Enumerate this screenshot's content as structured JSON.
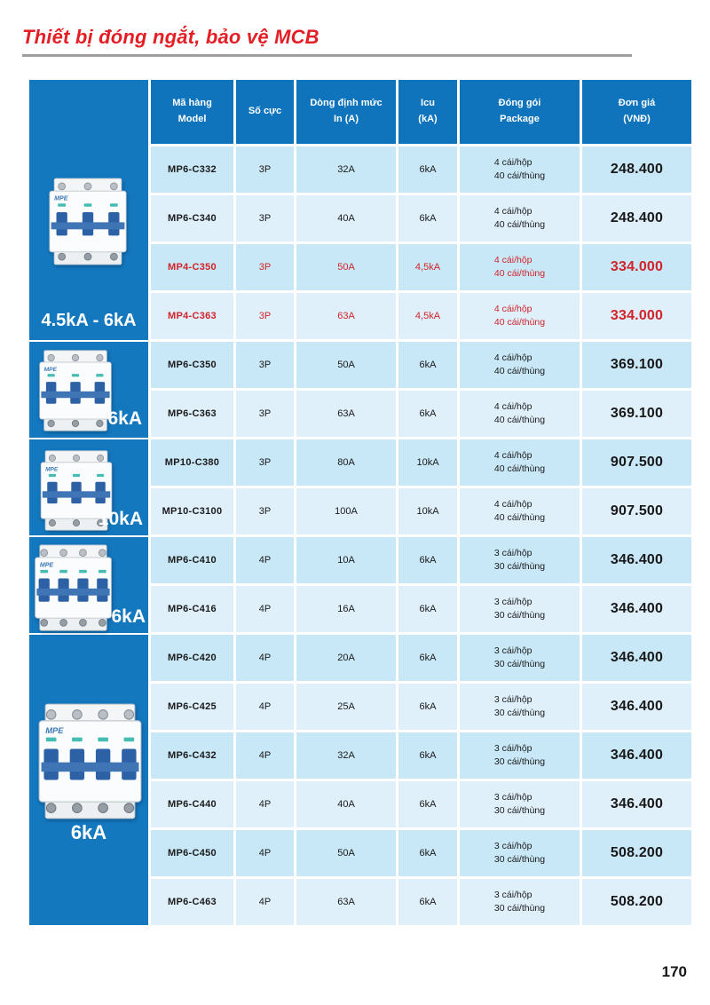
{
  "page": {
    "title": "Thiết bị đóng ngắt, bảo vệ MCB",
    "page_number": "170",
    "accent_red": "#D2232A",
    "header_blue": "#0F74BC",
    "sidebar_blue": "#1478BF",
    "row_color_dark": "#C9E8F7",
    "row_color_light": "#DFF0FB"
  },
  "sidebar": {
    "sections": [
      {
        "label": "4.5kA - 6kA",
        "image": "mcb-breaker-3-pole",
        "poles": 3
      },
      {
        "label": "6kA",
        "image": "mcb-breaker-3-pole",
        "poles": 3
      },
      {
        "label": "10kA",
        "image": "mcb-breaker-3-pole",
        "poles": 3
      },
      {
        "label": "6kA",
        "image": "mcb-breaker-4-pole",
        "poles": 4
      },
      {
        "label": "6kA",
        "image": "mcb-breaker-4-pole",
        "poles": 4
      }
    ]
  },
  "table": {
    "headers": [
      {
        "line1": "Mã hàng",
        "line2": "Model"
      },
      {
        "line1": "Số cực",
        "line2": ""
      },
      {
        "line1": "Dòng định mức",
        "line2": "In (A)"
      },
      {
        "line1": "Icu",
        "line2": "(kA)"
      },
      {
        "line1": "Đóng gói",
        "line2": "Package"
      },
      {
        "line1": "Đơn giá",
        "line2": "(VNĐ)"
      }
    ],
    "rows": [
      {
        "model": "MP6-C332",
        "poles": "3P",
        "in": "32A",
        "icu": "6kA",
        "pack1": "4 cái/hộp",
        "pack2": "40 cái/thùng",
        "price": "248.400",
        "highlight": false
      },
      {
        "model": "MP6-C340",
        "poles": "3P",
        "in": "40A",
        "icu": "6kA",
        "pack1": "4 cái/hộp",
        "pack2": "40 cái/thùng",
        "price": "248.400",
        "highlight": false
      },
      {
        "model": "MP4-C350",
        "poles": "3P",
        "in": "50A",
        "icu": "4,5kA",
        "pack1": "4 cái/hộp",
        "pack2": "40 cái/thùng",
        "price": "334.000",
        "highlight": true
      },
      {
        "model": "MP4-C363",
        "poles": "3P",
        "in": "63A",
        "icu": "4,5kA",
        "pack1": "4 cái/hộp",
        "pack2": "40 cái/thùng",
        "price": "334.000",
        "highlight": true
      },
      {
        "model": "MP6-C350",
        "poles": "3P",
        "in": "50A",
        "icu": "6kA",
        "pack1": "4 cái/hộp",
        "pack2": "40 cái/thùng",
        "price": "369.100",
        "highlight": false
      },
      {
        "model": "MP6-C363",
        "poles": "3P",
        "in": "63A",
        "icu": "6kA",
        "pack1": "4 cái/hộp",
        "pack2": "40 cái/thùng",
        "price": "369.100",
        "highlight": false
      },
      {
        "model": "MP10-C380",
        "poles": "3P",
        "in": "80A",
        "icu": "10kA",
        "pack1": "4 cái/hộp",
        "pack2": "40 cái/thùng",
        "price": "907.500",
        "highlight": false
      },
      {
        "model": "MP10-C3100",
        "poles": "3P",
        "in": "100A",
        "icu": "10kA",
        "pack1": "4 cái/hộp",
        "pack2": "40 cái/thùng",
        "price": "907.500",
        "highlight": false
      },
      {
        "model": "MP6-C410",
        "poles": "4P",
        "in": "10A",
        "icu": "6kA",
        "pack1": "3 cái/hộp",
        "pack2": "30 cái/thùng",
        "price": "346.400",
        "highlight": false
      },
      {
        "model": "MP6-C416",
        "poles": "4P",
        "in": "16A",
        "icu": "6kA",
        "pack1": "3 cái/hộp",
        "pack2": "30 cái/thùng",
        "price": "346.400",
        "highlight": false
      },
      {
        "model": "MP6-C420",
        "poles": "4P",
        "in": "20A",
        "icu": "6kA",
        "pack1": "3 cái/hộp",
        "pack2": "30 cái/thùng",
        "price": "346.400",
        "highlight": false
      },
      {
        "model": "MP6-C425",
        "poles": "4P",
        "in": "25A",
        "icu": "6kA",
        "pack1": "3 cái/hộp",
        "pack2": "30 cái/thùng",
        "price": "346.400",
        "highlight": false
      },
      {
        "model": "MP6-C432",
        "poles": "4P",
        "in": "32A",
        "icu": "6kA",
        "pack1": "3 cái/hộp",
        "pack2": "30 cái/thùng",
        "price": "346.400",
        "highlight": false
      },
      {
        "model": "MP6-C440",
        "poles": "4P",
        "in": "40A",
        "icu": "6kA",
        "pack1": "3 cái/hộp",
        "pack2": "30 cái/thùng",
        "price": "346.400",
        "highlight": false
      },
      {
        "model": "MP6-C450",
        "poles": "4P",
        "in": "50A",
        "icu": "6kA",
        "pack1": "3 cái/hộp",
        "pack2": "30 cái/thùng",
        "price": "508.200",
        "highlight": false
      },
      {
        "model": "MP6-C463",
        "poles": "4P",
        "in": "63A",
        "icu": "6kA",
        "pack1": "3 cái/hộp",
        "pack2": "30 cái/thùng",
        "price": "508.200",
        "highlight": false
      }
    ]
  }
}
